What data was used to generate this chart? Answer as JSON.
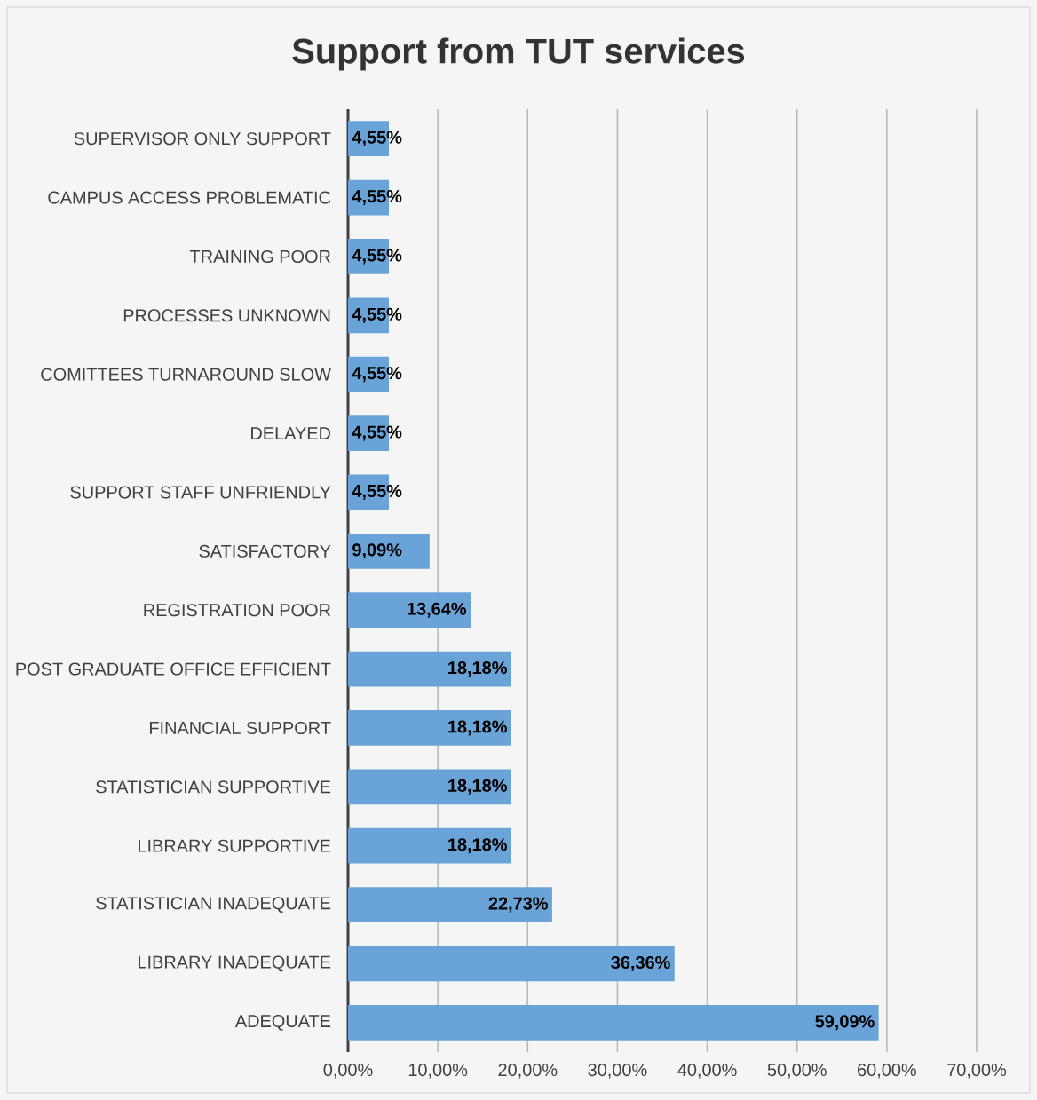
{
  "chart_data": {
    "type": "bar",
    "orientation": "horizontal",
    "title": "Support from TUT services",
    "categories": [
      "SUPERVISOR ONLY SUPPORT",
      "CAMPUS ACCESS PROBLEMATIC",
      "TRAINING POOR",
      "PROCESSES UNKNOWN",
      "COMITTEES TURNAROUND SLOW",
      "DELAYED",
      "SUPPORT STAFF UNFRIENDLY",
      "SATISFACTORY",
      "REGISTRATION POOR",
      "POST GRADUATE OFFICE EFFICIENT",
      "FINANCIAL SUPPORT",
      "STATISTICIAN SUPPORTIVE",
      "LIBRARY SUPPORTIVE",
      "STATISTICIAN INADEQUATE",
      "LIBRARY INADEQUATE",
      "ADEQUATE"
    ],
    "values": [
      4.55,
      4.55,
      4.55,
      4.55,
      4.55,
      4.55,
      4.55,
      9.09,
      13.64,
      18.18,
      18.18,
      18.18,
      18.18,
      22.73,
      36.36,
      59.09
    ],
    "value_labels": [
      "4,55%",
      "4,55%",
      "4,55%",
      "4,55%",
      "4,55%",
      "4,55%",
      "4,55%",
      "9,09%",
      "13,64%",
      "18,18%",
      "18,18%",
      "18,18%",
      "18,18%",
      "22,73%",
      "36,36%",
      "59,09%"
    ],
    "color": "#6aa3d7",
    "xlim": [
      0,
      70
    ],
    "xticks": [
      {
        "value": 0,
        "label": "0,00%"
      },
      {
        "value": 10,
        "label": "10,00%"
      },
      {
        "value": 20,
        "label": "20,00%"
      },
      {
        "value": 30,
        "label": "30,00%"
      },
      {
        "value": 40,
        "label": "40,00%"
      },
      {
        "value": 50,
        "label": "50,00%"
      },
      {
        "value": 60,
        "label": "60,00%"
      },
      {
        "value": 70,
        "label": "70,00%"
      }
    ],
    "grid": "x"
  }
}
